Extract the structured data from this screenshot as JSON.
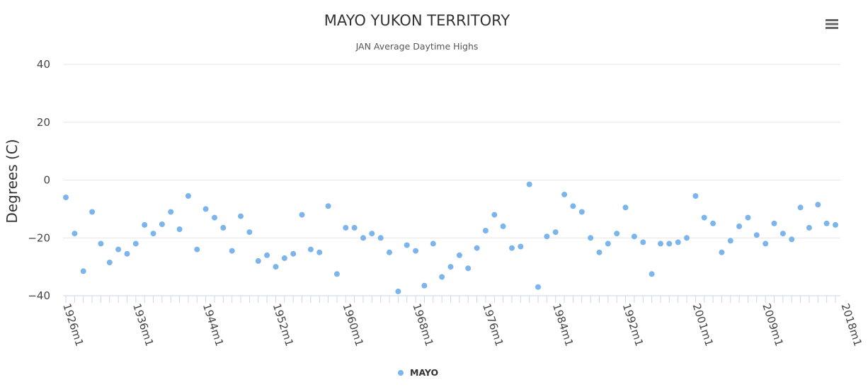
{
  "chart_data": {
    "type": "scatter",
    "title": "MAYO YUKON TERRITORY",
    "subtitle": "JAN Average Daytime Highs",
    "ylabel": "Degrees (C)",
    "xlabel": "",
    "ylim": [
      -40,
      40
    ],
    "yticks": [
      -40,
      -20,
      0,
      20,
      40
    ],
    "grid": true,
    "legend_position": "bottom-center",
    "x_tick_labels": [
      "1926m1",
      "1936m1",
      "1944m1",
      "1952m1",
      "1960m1",
      "1968m1",
      "1976m1",
      "1984m1",
      "1992m1",
      "2001m1",
      "2009m1",
      "2018m1"
    ],
    "x_tick_label_indices": [
      0,
      8,
      16,
      24,
      32,
      40,
      48,
      56,
      64,
      72,
      80,
      89
    ],
    "point_color": "#7cb5ec",
    "series": [
      {
        "name": "MAYO",
        "values": [
          -6,
          -18.5,
          -31.5,
          -11,
          -22,
          -28.5,
          -24,
          -25.5,
          -22,
          -15.5,
          -18.5,
          -15.3,
          -11,
          -17,
          -5.5,
          -24,
          -10,
          -13,
          -16.5,
          -24.5,
          -12.5,
          -18,
          -28,
          -26,
          -30,
          -27,
          -25.5,
          -12,
          -24,
          -25,
          -9,
          -32.5,
          -16.5,
          -16.5,
          -20,
          -18.5,
          -20,
          -25,
          -38.5,
          -22.5,
          -24.5,
          -36.5,
          -22,
          -33.5,
          -30,
          -26,
          -30.5,
          -23.5,
          -17.5,
          -12,
          -16,
          -23.5,
          -23,
          -1.5,
          -37,
          -19.5,
          -18,
          -5,
          -9,
          -11,
          -20,
          -25,
          -22,
          -18.5,
          -9.5,
          -19.5,
          -21.5,
          -32.5,
          -22,
          -22,
          -21.5,
          -20,
          -5.5,
          -13,
          -15,
          -25,
          -21,
          -16,
          -13,
          -19,
          -22,
          -15,
          -18.5,
          -20.5,
          -9.5,
          -16.5,
          -8.5,
          -15,
          -15.5
        ]
      }
    ]
  }
}
